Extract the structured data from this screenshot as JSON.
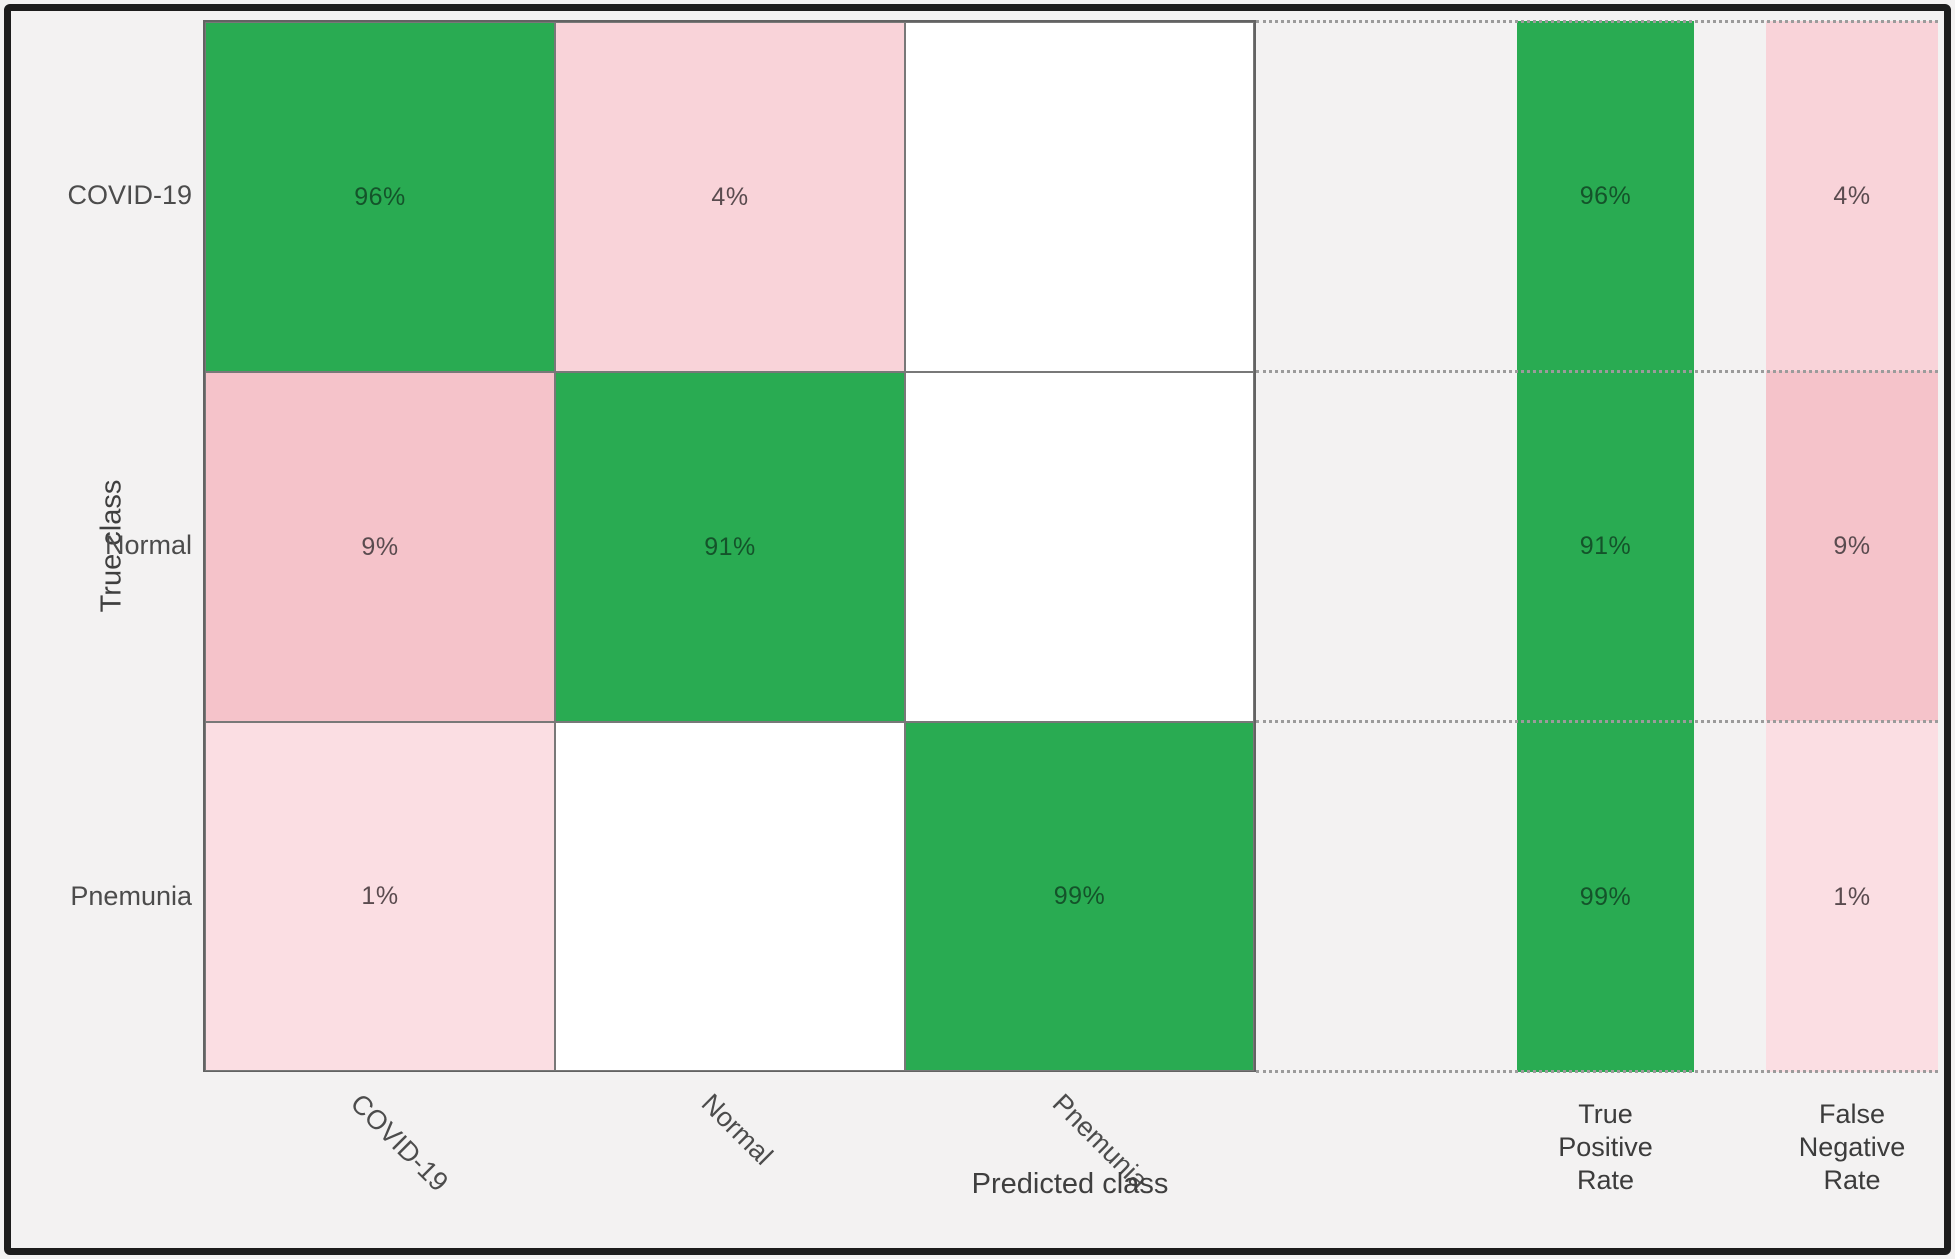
{
  "chart_data": {
    "type": "heatmap",
    "subtype": "confusion-matrix",
    "xlabel": "Predicted class",
    "ylabel": "True class",
    "row_labels": [
      "COVID-19",
      "Normal",
      "Pnemunia"
    ],
    "col_labels": [
      "COVID-19",
      "Normal",
      "Pnemunia"
    ],
    "matrix_percent": [
      [
        96,
        4,
        null
      ],
      [
        9,
        91,
        null
      ],
      [
        1,
        null,
        99
      ]
    ],
    "cell_text": {
      "r0c0": "96%",
      "r0c1": "4%",
      "r0c2": "",
      "r1c0": "9%",
      "r1c1": "91%",
      "r1c2": "",
      "r2c0": "1%",
      "r2c1": "",
      "r2c2": "99%"
    },
    "summary": {
      "tpr": {
        "label_lines": [
          "True",
          "Positive",
          "Rate"
        ],
        "values": [
          "96%",
          "91%",
          "99%"
        ],
        "values_percent": [
          96,
          91,
          99
        ]
      },
      "fnr": {
        "label_lines": [
          "False",
          "Negative",
          "Rate"
        ],
        "values": [
          "4%",
          "9%",
          "1%"
        ],
        "values_percent": [
          4,
          9,
          1
        ]
      }
    },
    "colors": {
      "diagonal_green": "#29ab52",
      "offdiag_pink_9pct": "#f5c3ca",
      "offdiag_pink_4pct": "#f9d3d9",
      "offdiag_pink_1pct": "#fbdee3",
      "empty_cell": "#ffffff",
      "figure_background": "#f3f2f2",
      "grid_line": "#787878",
      "dotted_guide": "#9b9b9b",
      "frame": "#1d1d1d"
    },
    "layout_hints": {
      "x_tick_rotation_deg": 45,
      "grid": "solid cell borders in matrix, dotted row guides extending to summary columns",
      "legend": "none"
    }
  }
}
